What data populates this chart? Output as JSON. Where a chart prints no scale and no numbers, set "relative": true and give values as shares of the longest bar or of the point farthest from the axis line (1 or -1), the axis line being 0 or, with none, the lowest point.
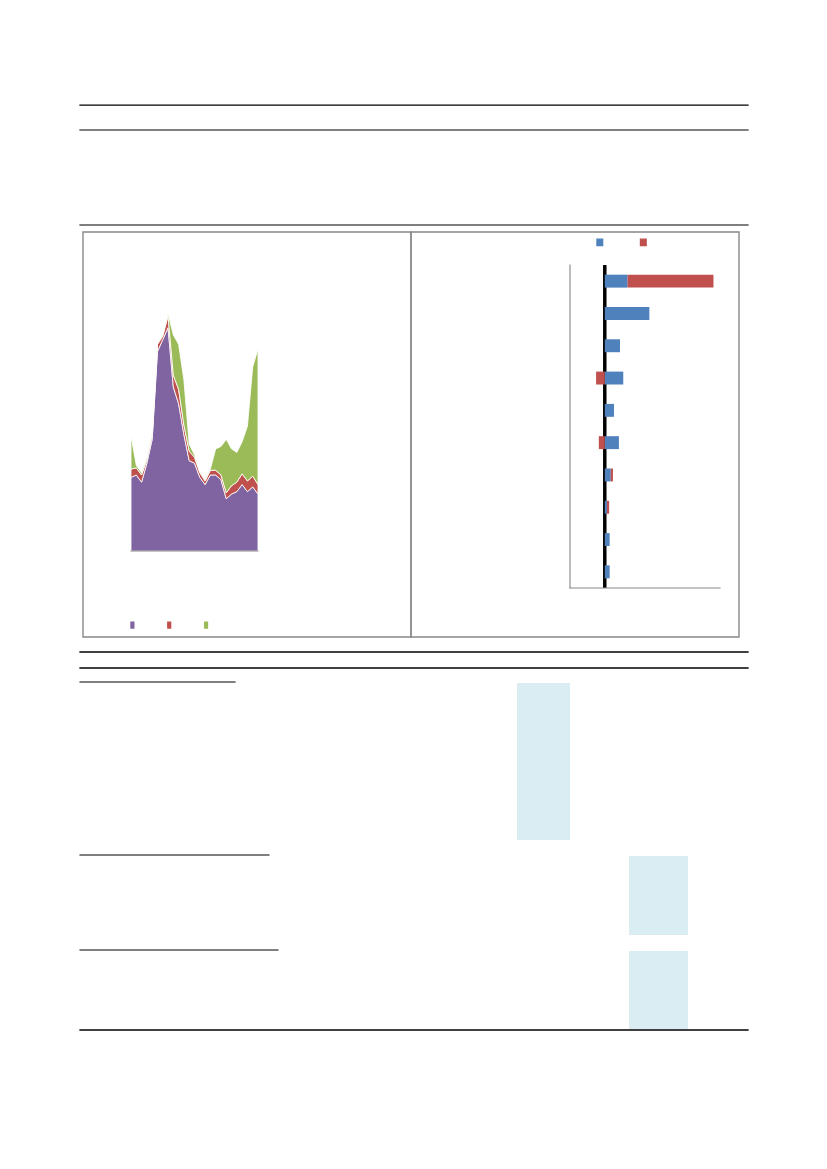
{
  "chart_data": [
    {
      "type": "area",
      "stacked": true,
      "relative": true,
      "categories": [
        null,
        null,
        null,
        null,
        null,
        null,
        null,
        null,
        null,
        null,
        null,
        null,
        null,
        null,
        null,
        null,
        null,
        null,
        null,
        null,
        null,
        null,
        null,
        null,
        null
      ],
      "series": [
        {
          "color": "#8064a2",
          "values": [
            0.31,
            0.32,
            0.29,
            0.37,
            0.47,
            0.84,
            0.89,
            0.94,
            0.69,
            0.62,
            0.49,
            0.38,
            0.37,
            0.31,
            0.28,
            0.32,
            0.32,
            0.3,
            0.22,
            0.24,
            0.25,
            0.28,
            0.25,
            0.27,
            0.24
          ]
        },
        {
          "color": "#c0504d",
          "values": [
            0.035,
            0.03,
            0.03,
            0.015,
            0.02,
            0.03,
            0.015,
            0.05,
            0.05,
            0.06,
            0.04,
            0.04,
            0.025,
            0.02,
            0.015,
            0.02,
            0.02,
            0.02,
            0.025,
            0.035,
            0.04,
            0.045,
            0.045,
            0.045,
            0.04
          ]
        },
        {
          "color": "#9bbb59",
          "values": [
            0.14,
            0.01,
            0.01,
            0.01,
            0.01,
            0.005,
            0.005,
            0.01,
            0.17,
            0.19,
            0.19,
            0.03,
            0.01,
            0.005,
            0.005,
            0.005,
            0.09,
            0.12,
            0.225,
            0.155,
            0.125,
            0.135,
            0.23,
            0.46,
            0.57
          ]
        }
      ]
    },
    {
      "type": "bar",
      "orientation": "horizontal",
      "stacked": true,
      "relative": true,
      "categories": [
        null,
        null,
        null,
        null,
        null,
        null,
        null,
        null,
        null,
        null
      ],
      "series": [
        {
          "color": "#4f81bd",
          "values": [
            0.21,
            0.41,
            0.14,
            0.17,
            0.085,
            0.13,
            0.055,
            0.02,
            0.045,
            0.045
          ]
        },
        {
          "color": "#c0504d",
          "values": [
            0.79,
            0,
            0,
            -0.08,
            0,
            -0.055,
            0.02,
            0.02,
            0,
            0
          ]
        }
      ]
    }
  ]
}
